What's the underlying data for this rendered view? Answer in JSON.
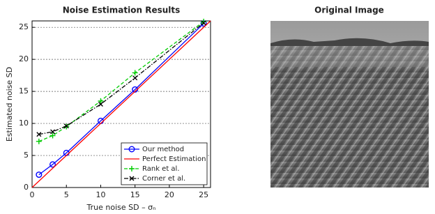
{
  "chart_data": [
    {
      "type": "line",
      "title": "Noise Estimation Results",
      "xlabel": "True noise SD – σₙ",
      "ylabel": "Estimated noise SD",
      "x": [
        1,
        3,
        5,
        10,
        15,
        25
      ],
      "series": [
        {
          "name": "Our method",
          "color": "#0000ff",
          "marker": "o",
          "linestyle": "solid",
          "values": [
            2.0,
            3.6,
            5.4,
            10.4,
            15.3,
            25.6
          ]
        },
        {
          "name": "Perfect Estimation",
          "color": "#ff0000",
          "marker": "none",
          "linestyle": "solid",
          "x": [
            0,
            26
          ],
          "values": [
            0,
            26
          ]
        },
        {
          "name": "Rank et al.",
          "color": "#00cc00",
          "marker": "+",
          "linestyle": "dashed",
          "values": [
            7.2,
            8.1,
            9.5,
            13.5,
            17.9,
            25.9
          ]
        },
        {
          "name": "Corner et al.",
          "color": "#000000",
          "marker": "x",
          "linestyle": "dashdot",
          "values": [
            8.3,
            8.7,
            9.6,
            13.0,
            17.1,
            25.7
          ]
        }
      ],
      "xlim": [
        0,
        26
      ],
      "ylim": [
        0,
        26
      ],
      "xticks": [
        0,
        5,
        10,
        15,
        20,
        25
      ],
      "yticks": [
        0,
        5,
        10,
        15,
        20,
        25
      ],
      "grid": true,
      "legend": "lower right"
    },
    {
      "type": "image",
      "title": "Original Image"
    }
  ]
}
